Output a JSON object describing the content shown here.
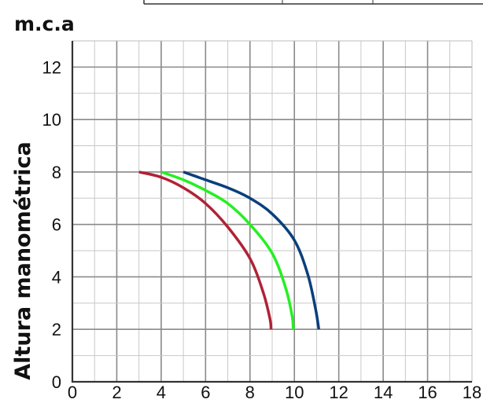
{
  "chart_data": {
    "type": "line",
    "ylabel": "Altura manométrica",
    "unit_label": "m.c.a",
    "xlim": [
      0,
      18
    ],
    "ylim": [
      0,
      13
    ],
    "xticks": [
      0,
      2,
      4,
      6,
      8,
      10,
      12,
      14,
      16,
      18
    ],
    "yticks": [
      0,
      2,
      4,
      6,
      8,
      10,
      12
    ],
    "grid": true,
    "series": [
      {
        "color": "#b02236",
        "x": [
          3,
          4,
          5,
          6,
          7,
          8,
          8.6,
          8.9,
          8.95
        ],
        "y": [
          8,
          7.8,
          7.4,
          6.8,
          5.9,
          4.7,
          3.4,
          2.4,
          2
        ]
      },
      {
        "color": "#24f020",
        "x": [
          4,
          5,
          6,
          7,
          8,
          9,
          9.6,
          9.9,
          9.95
        ],
        "y": [
          8,
          7.7,
          7.3,
          6.8,
          6.0,
          4.9,
          3.6,
          2.5,
          2
        ]
      },
      {
        "color": "#0a3f7c",
        "x": [
          5,
          6,
          7,
          8,
          9,
          10,
          10.6,
          10.95,
          11.1
        ],
        "y": [
          8,
          7.7,
          7.4,
          7.0,
          6.4,
          5.4,
          4.1,
          2.8,
          2
        ]
      }
    ]
  }
}
